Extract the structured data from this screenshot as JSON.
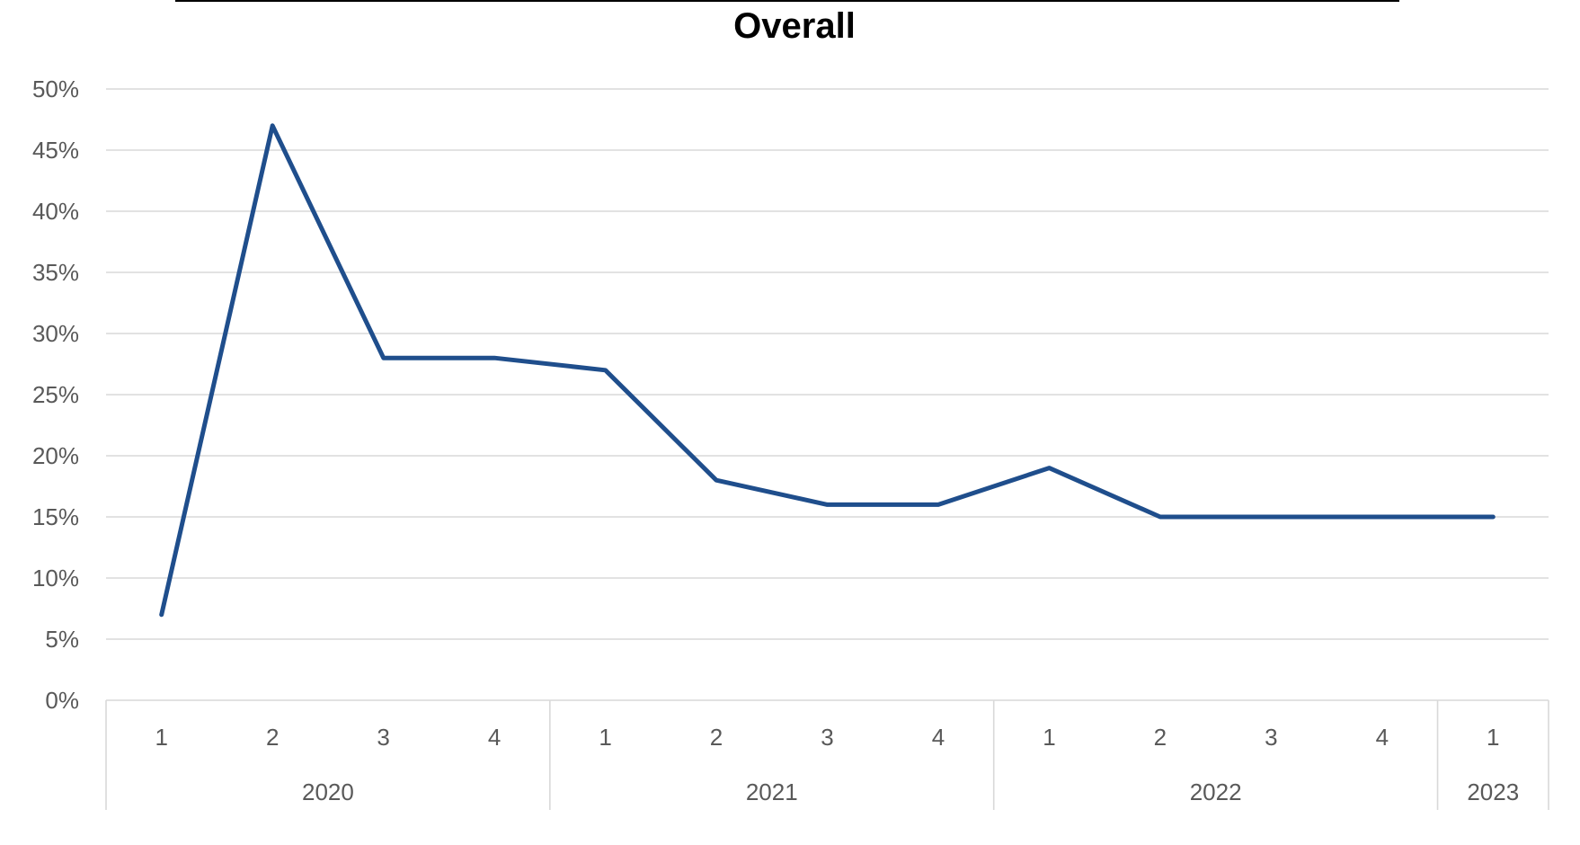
{
  "chart_data": {
    "type": "line",
    "title": "Overall",
    "xlabel": "",
    "ylabel": "",
    "y_format": "percent",
    "ylim": [
      0,
      50
    ],
    "yticks": [
      "0%",
      "5%",
      "10%",
      "15%",
      "20%",
      "25%",
      "30%",
      "35%",
      "40%",
      "45%",
      "50%"
    ],
    "categories": [
      "1",
      "2",
      "3",
      "4",
      "1",
      "2",
      "3",
      "4",
      "1",
      "2",
      "3",
      "4",
      "1"
    ],
    "groups": [
      {
        "label": "2020",
        "count": 4
      },
      {
        "label": "2021",
        "count": 4
      },
      {
        "label": "2022",
        "count": 4
      },
      {
        "label": "2023",
        "count": 1
      }
    ],
    "series": [
      {
        "values": [
          7,
          47,
          28,
          28,
          27,
          18,
          16,
          16,
          19,
          15,
          15,
          15,
          15
        ],
        "color": "#1f4e8c"
      }
    ],
    "grid": true,
    "legend": "none"
  }
}
